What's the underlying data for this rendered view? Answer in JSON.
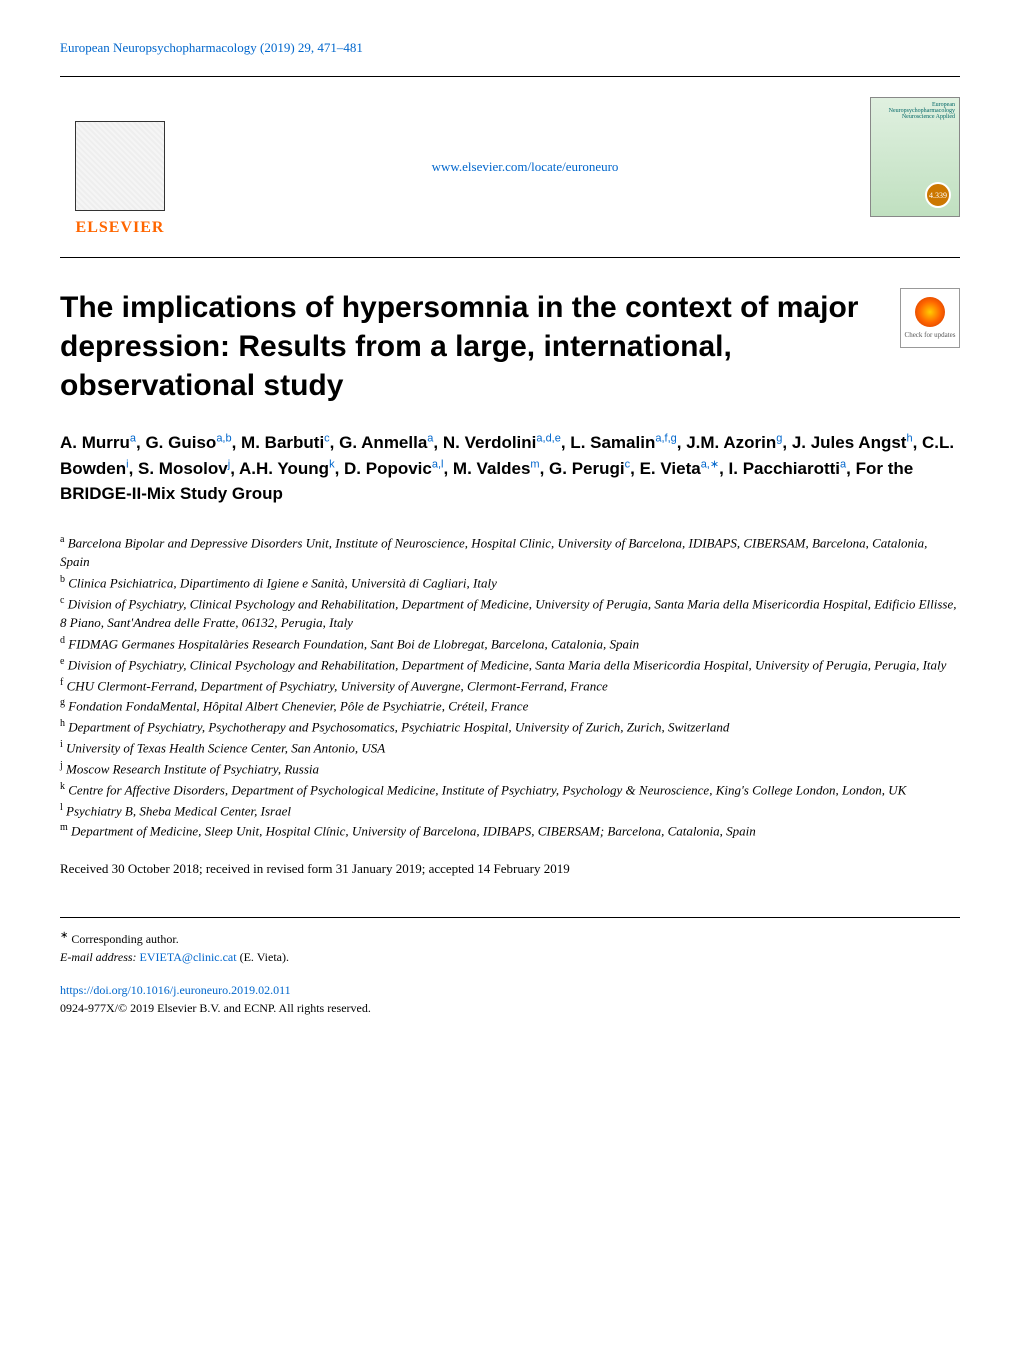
{
  "header": {
    "citation": "European Neuropsychopharmacology (2019) 29, 471–481",
    "journal_url": "www.elsevier.com/locate/euroneuro",
    "publisher_name": "ELSEVIER",
    "journal_cover_title": "European Neuropsychopharmacology",
    "journal_cover_subtitle": "Neuroscience Applied",
    "badge_value": "4.339"
  },
  "article": {
    "title": "The implications of hypersomnia in the context of major depression: Results from a large, international, observational study",
    "check_updates_label": "Check for updates"
  },
  "authors_line1": "A. Murru",
  "authors_sup1": "a",
  "authors_line2": ", G. Guiso",
  "authors_sup2": "a,b",
  "authors_line3": ", M. Barbuti",
  "authors_sup3": "c",
  "authors_line4": ", G. Anmella",
  "authors_sup4": "a",
  "authors_line5": ", N. Verdolini",
  "authors_sup5": "a,d,e",
  "authors_line6": ", L. Samalin",
  "authors_sup6": "a,f,g",
  "authors_line7": ", J.M. Azorin",
  "authors_sup7": "g",
  "authors_line8": ", J. Jules Angst",
  "authors_sup8": "h",
  "authors_line9": ", C.L. Bowden",
  "authors_sup9": "i",
  "authors_line10": ", S. Mosolov",
  "authors_sup10": "j",
  "authors_line11": ", A.H. Young",
  "authors_sup11": "k",
  "authors_line12": ", D. Popovic",
  "authors_sup12": "a,l",
  "authors_line13": ", M. Valdes",
  "authors_sup13": "m",
  "authors_line14": ", G. Perugi",
  "authors_sup14": "c",
  "authors_line15": ", E. Vieta",
  "authors_sup15": "a,∗",
  "authors_line16": ", I. Pacchiarotti",
  "authors_sup16": "a",
  "authors_group": ", For the BRIDGE-II-Mix Study Group",
  "affiliations": {
    "a": "Barcelona Bipolar and Depressive Disorders Unit, Institute of Neuroscience, Hospital Clinic, University of Barcelona, IDIBAPS, CIBERSAM, Barcelona, Catalonia, Spain",
    "b": "Clinica Psichiatrica, Dipartimento di Igiene e Sanità, Università di Cagliari, Italy",
    "c": "Division of Psychiatry, Clinical Psychology and Rehabilitation, Department of Medicine, University of Perugia, Santa Maria della Misericordia Hospital, Edificio Ellisse, 8 Piano, Sant'Andrea delle Fratte, 06132, Perugia, Italy",
    "d": "FIDMAG Germanes Hospitalàries Research Foundation, Sant Boi de Llobregat, Barcelona, Catalonia, Spain",
    "e": "Division of Psychiatry, Clinical Psychology and Rehabilitation, Department of Medicine, Santa Maria della Misericordia Hospital, University of Perugia, Perugia, Italy",
    "f": "CHU Clermont-Ferrand, Department of Psychiatry, University of Auvergne, Clermont-Ferrand, France",
    "g": "Fondation FondaMental, Hôpital Albert Chenevier, Pôle de Psychiatrie, Créteil, France",
    "h": "Department of Psychiatry, Psychotherapy and Psychosomatics, Psychiatric Hospital, University of Zurich, Zurich, Switzerland",
    "i": "University of Texas Health Science Center, San Antonio, USA",
    "j": "Moscow Research Institute of Psychiatry, Russia",
    "k": "Centre for Affective Disorders, Department of Psychological Medicine, Institute of Psychiatry, Psychology & Neuroscience, King's College London, London, UK",
    "l": "Psychiatry B, Sheba Medical Center, Israel",
    "m": "Department of Medicine, Sleep Unit, Hospital Clínic, University of Barcelona, IDIBAPS, CIBERSAM; Barcelona, Catalonia, Spain"
  },
  "dates": "Received 30 October 2018; received in revised form 31 January 2019; accepted 14 February 2019",
  "corresponding": {
    "label": "Corresponding author.",
    "email_label": "E-mail address:",
    "email": "EVIETA@clinic.cat",
    "email_name": "(E. Vieta)."
  },
  "footer": {
    "doi": "https://doi.org/10.1016/j.euroneuro.2019.02.011",
    "copyright": "0924-977X/© 2019 Elsevier B.V. and ECNP. All rights reserved."
  },
  "colors": {
    "link": "#0066cc",
    "elsevier_orange": "#ff6600",
    "text": "#000000",
    "background": "#ffffff"
  }
}
